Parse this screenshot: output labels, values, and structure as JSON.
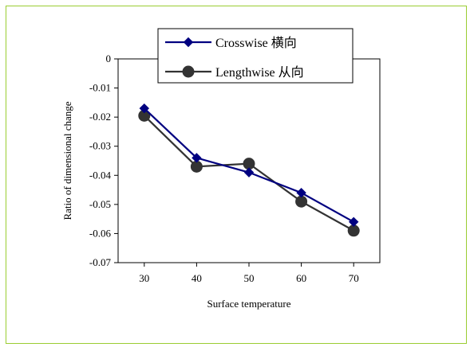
{
  "chart_data": {
    "type": "line",
    "title": "",
    "xlabel": "Surface temperature",
    "ylabel": "Ratio of dimensional change",
    "x": [
      30,
      40,
      50,
      60,
      70
    ],
    "x_tick_labels": [
      "30",
      "40",
      "50",
      "60",
      "70"
    ],
    "ylim": [
      -0.07,
      0
    ],
    "y_tick_labels": [
      "0",
      "-0.01",
      "-0.02",
      "-0.03",
      "-0.04",
      "-0.05",
      "-0.06",
      "-0.07"
    ],
    "grid": false,
    "legend_position": "top",
    "series": [
      {
        "name": "Crosswise 横向",
        "color": "#000080",
        "marker": "diamond",
        "values": [
          -0.017,
          -0.034,
          -0.039,
          -0.046,
          -0.056
        ]
      },
      {
        "name": "Lengthwise 从向",
        "color": "#333333",
        "marker": "circle",
        "values": [
          -0.0195,
          -0.037,
          -0.036,
          -0.049,
          -0.059
        ]
      }
    ]
  },
  "frame_border_color": "#9acd32"
}
